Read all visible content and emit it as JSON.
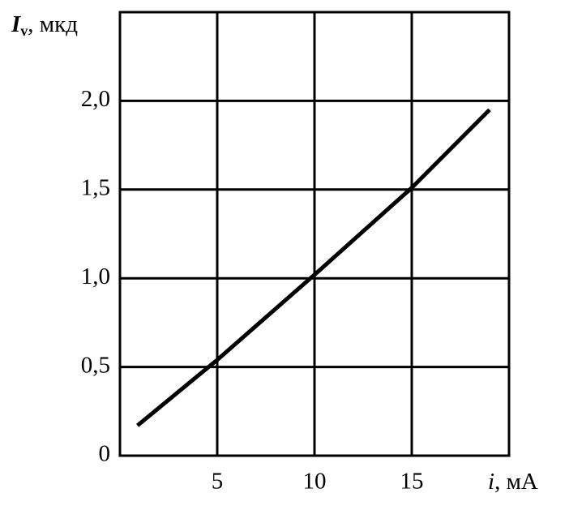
{
  "chart_data": {
    "type": "line",
    "ylabel_symbol": "I",
    "ylabel_subscript": "v",
    "ylabel_unit": ", мкд",
    "xlabel_symbol": "i",
    "xlabel_unit": ", мА",
    "x": [
      0.9,
      5,
      10,
      15,
      19
    ],
    "series": [
      {
        "color": "#000000",
        "values": [
          0.17,
          0.54,
          1.02,
          1.51,
          1.95
        ]
      }
    ],
    "xlim": [
      0,
      20
    ],
    "ylim": [
      0,
      2.5
    ],
    "xticks": [
      5,
      10,
      15
    ],
    "yticks": [
      0,
      {
        "value": 0.5,
        "label": "0,5"
      },
      {
        "value": 1.0,
        "label": "1,0"
      },
      {
        "value": 1.5,
        "label": "1,5"
      },
      {
        "value": 2.0,
        "label": "2,0"
      }
    ],
    "grid": true
  }
}
